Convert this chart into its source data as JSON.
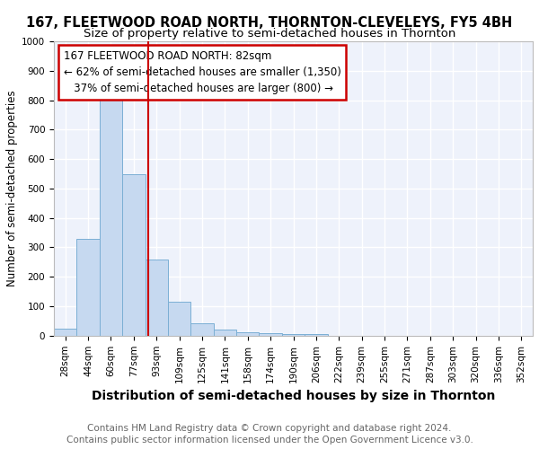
{
  "title1": "167, FLEETWOOD ROAD NORTH, THORNTON-CLEVELEYS, FY5 4BH",
  "title2": "Size of property relative to semi-detached houses in Thornton",
  "xlabel": "Distribution of semi-detached houses by size in Thornton",
  "ylabel": "Number of semi-detached properties",
  "footnote1": "Contains HM Land Registry data © Crown copyright and database right 2024.",
  "footnote2": "Contains public sector information licensed under the Open Government Licence v3.0.",
  "categories": [
    "28sqm",
    "44sqm",
    "60sqm",
    "77sqm",
    "93sqm",
    "109sqm",
    "125sqm",
    "141sqm",
    "158sqm",
    "174sqm",
    "190sqm",
    "206sqm",
    "222sqm",
    "239sqm",
    "255sqm",
    "271sqm",
    "287sqm",
    "303sqm",
    "320sqm",
    "336sqm",
    "352sqm"
  ],
  "values": [
    25,
    330,
    830,
    550,
    260,
    115,
    43,
    20,
    12,
    10,
    7,
    5,
    0,
    0,
    0,
    0,
    0,
    0,
    0,
    0,
    0
  ],
  "bar_color": "#c6d9f0",
  "bar_edge_color": "#7bafd4",
  "red_line_x": 3.62,
  "red_line_color": "#cc0000",
  "annot_line1": "167 FLEETWOOD ROAD NORTH: 82sqm",
  "annot_line2": "← 62% of semi-detached houses are smaller (1,350)",
  "annot_line3": "   37% of semi-detached houses are larger (800) →",
  "annotation_box_color": "#cc0000",
  "ylim": [
    0,
    1000
  ],
  "yticks": [
    0,
    100,
    200,
    300,
    400,
    500,
    600,
    700,
    800,
    900,
    1000
  ],
  "bg_color": "#eef2fb",
  "grid_color": "#ffffff",
  "fig_bg_color": "#ffffff",
  "title1_fontsize": 10.5,
  "title2_fontsize": 9.5,
  "xlabel_fontsize": 10,
  "ylabel_fontsize": 8.5,
  "tick_fontsize": 7.5,
  "annot_fontsize": 8.5,
  "footnote_fontsize": 7.5
}
